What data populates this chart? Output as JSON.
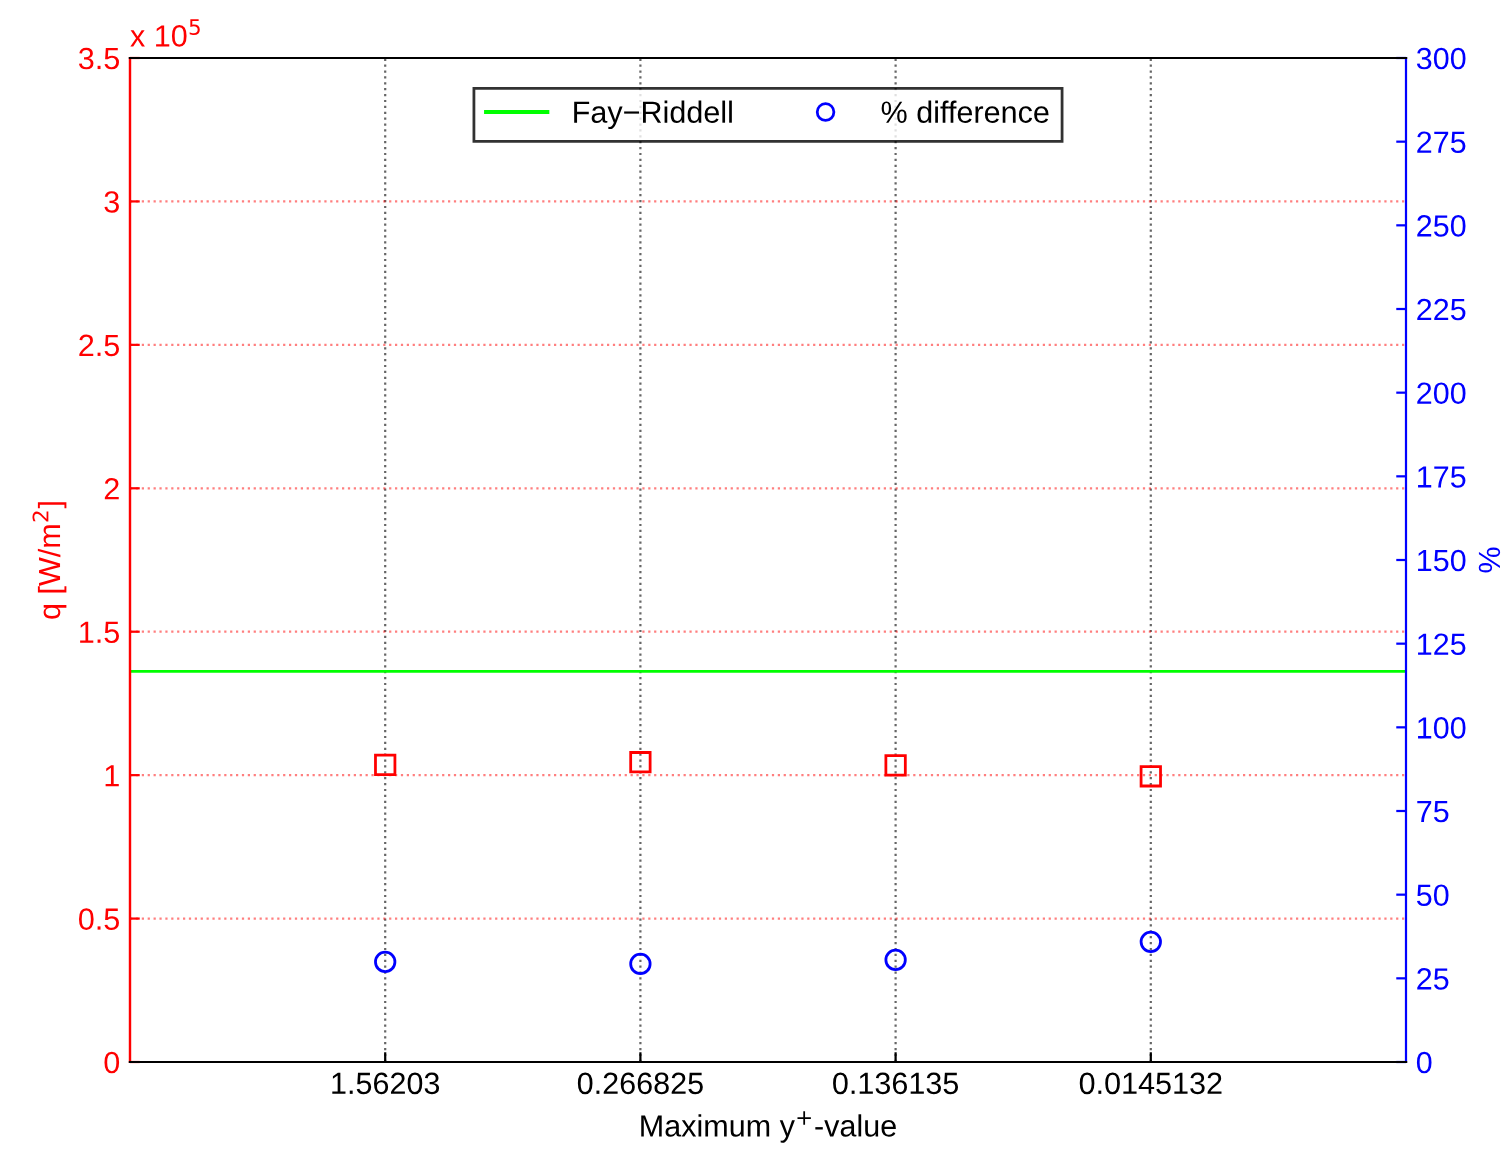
{
  "chart_data": {
    "type": "scatter",
    "xlabel": "Maximum y$^{+}$-value",
    "ylabel": "q [W/m$^{2}$]",
    "y2label": "%",
    "annotations": [
      "x 10$^{5}$"
    ],
    "categories": [
      "1.56203",
      "0.266825",
      "0.136135",
      "0.0145132"
    ],
    "series": [
      {
        "color": "#ff0000",
        "marker": "square",
        "values": [
          1.036,
          1.045,
          1.034,
          0.996
        ]
      },
      {
        "name": "% difference",
        "color": "#0000ff",
        "marker": "circle",
        "axis": "y2",
        "values": [
          29.9,
          29.3,
          30.5,
          35.9
        ]
      }
    ],
    "ref_lines": [
      {
        "axis": "y",
        "value": 1.362,
        "label": "Fay−Riddell",
        "color": "#00ff00",
        "line_style": "solid"
      }
    ],
    "ylim": [
      0,
      3.5
    ],
    "yticks": [
      0,
      0.5,
      1,
      1.5,
      2,
      2.5,
      3,
      3.5
    ],
    "y2lim": [
      0,
      300
    ],
    "y2ticks": [
      0,
      25,
      50,
      75,
      100,
      125,
      150,
      175,
      200,
      225,
      250,
      275,
      300
    ],
    "grid": true,
    "legend": "top"
  }
}
